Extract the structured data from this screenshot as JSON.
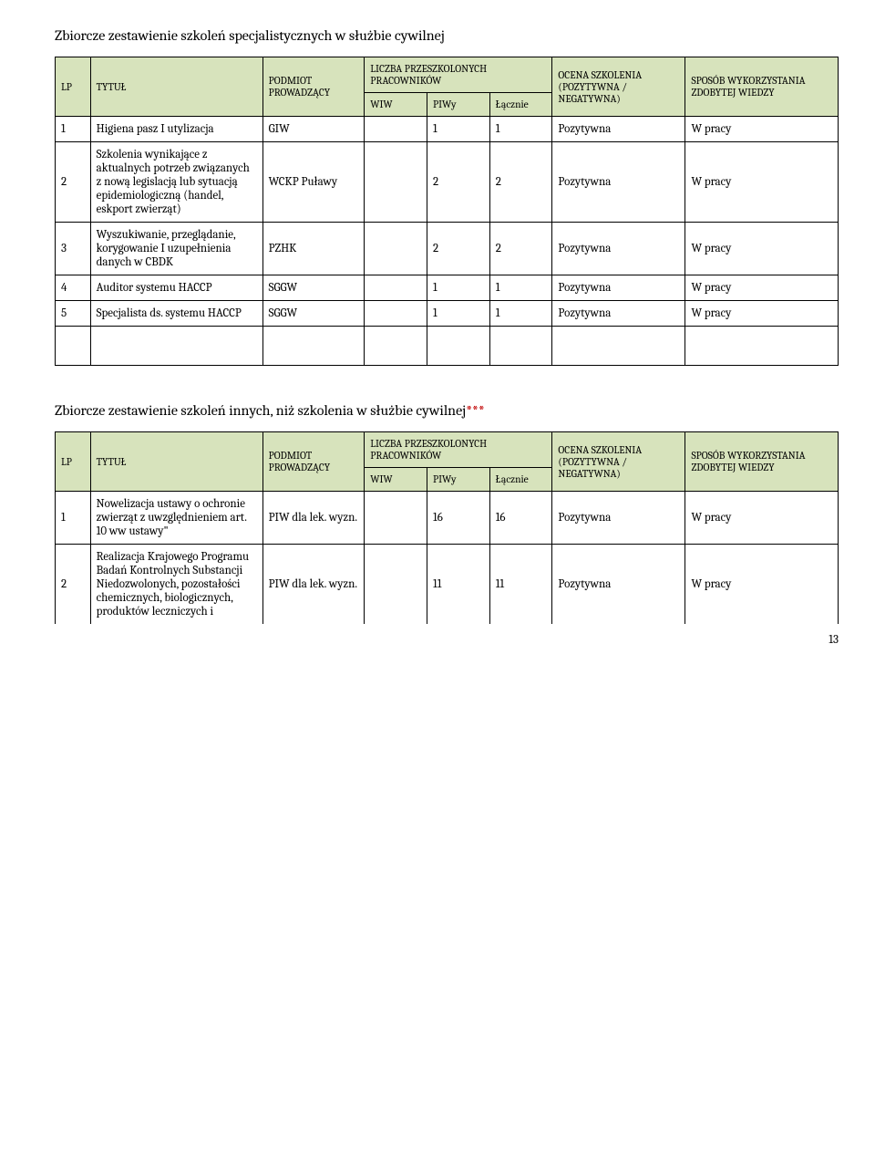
{
  "section1": {
    "title": "Zbiorcze zestawienie szkoleń specjalistycznych w służbie cywilnej",
    "headers": {
      "lp": "LP",
      "tytul": "TYTUŁ",
      "podmiot": "PODMIOT PROWADZĄCY",
      "liczba": "LICZBA PRZESZKOLONYCH PRACOWNIKÓW",
      "wiw": "WIW",
      "piwy": "PIWy",
      "lacznie": "Łącznie",
      "ocena": "OCENA SZKOLENIA (POZYTYWNA / NEGATYWNA)",
      "sposob": "SPOSÓB WYKORZYSTANIA ZDOBYTEJ WIEDZY"
    },
    "rows": [
      {
        "lp": "1",
        "tytul": "Higiena pasz I utylizacja",
        "podmiot": "GIW",
        "wiw": "",
        "piwy": "1",
        "lacznie": "1",
        "ocena": "Pozytywna",
        "sposob": "W pracy"
      },
      {
        "lp": "2",
        "tytul": "Szkolenia wynikające z aktualnych potrzeb związanych z nową legislacją lub sytuacją epidemiologiczną (handel, eskport zwierząt)",
        "podmiot": "WCKP Puławy",
        "wiw": "",
        "piwy": "2",
        "lacznie": "2",
        "ocena": "Pozytywna",
        "sposob": "W pracy"
      },
      {
        "lp": "3",
        "tytul": "Wyszukiwanie, przeglądanie, korygowanie I uzupełnienia danych w CBDK",
        "podmiot": "PZHK",
        "wiw": "",
        "piwy": "2",
        "lacznie": "2",
        "ocena": "Pozytywna",
        "sposob": "W pracy"
      },
      {
        "lp": "4",
        "tytul": "Auditor systemu HACCP",
        "podmiot": "SGGW",
        "wiw": "",
        "piwy": "1",
        "lacznie": "1",
        "ocena": "Pozytywna",
        "sposob": "W pracy"
      },
      {
        "lp": "5",
        "tytul": "Specjalista ds. systemu HACCP",
        "podmiot": "SGGW",
        "wiw": "",
        "piwy": "1",
        "lacznie": "1",
        "ocena": "Pozytywna",
        "sposob": "W pracy"
      }
    ]
  },
  "section2": {
    "title_main": "Zbiorcze zestawienie szkoleń innych, niż szkolenia w służbie cywilnej",
    "title_suffix": "***",
    "headers": {
      "lp": "LP",
      "tytul": "TYTUŁ",
      "podmiot": "PODMIOT PROWADZĄCY",
      "liczba": "LICZBA PRZESZKOLONYCH PRACOWNIKÓW",
      "wiw": "WIW",
      "piwy": "PIWy",
      "lacznie": "Łącznie",
      "ocena": "OCENA SZKOLENIA (POZYTYWNA / NEGATYWNA)",
      "sposob": "SPOSÓB WYKORZYSTANIA ZDOBYTEJ WIEDZY"
    },
    "rows": [
      {
        "lp": "1",
        "tytul": "Nowelizacja ustawy o ochronie zwierząt z uwzględnieniem art. 10 ww ustawy\"",
        "podmiot": "PIW dla lek. wyzn.",
        "wiw": "",
        "piwy": "16",
        "lacznie": "16",
        "ocena": "Pozytywna",
        "sposob": "W pracy"
      },
      {
        "lp": "2",
        "tytul": "Realizacja Krajowego Programu Badań Kontrolnych Substancji Niedozwolonych, pozostałości chemicznych, biologicznych, produktów leczniczych i",
        "podmiot": "PIW dla lek. wyzn.",
        "wiw": "",
        "piwy": "11",
        "lacznie": "11",
        "ocena": "Pozytywna",
        "sposob": "W pracy"
      }
    ]
  },
  "page_number": "13",
  "colors": {
    "header_bg": "#d7e3bc",
    "border": "#000000",
    "red": "#c00000",
    "text": "#000000",
    "background": "#ffffff"
  }
}
